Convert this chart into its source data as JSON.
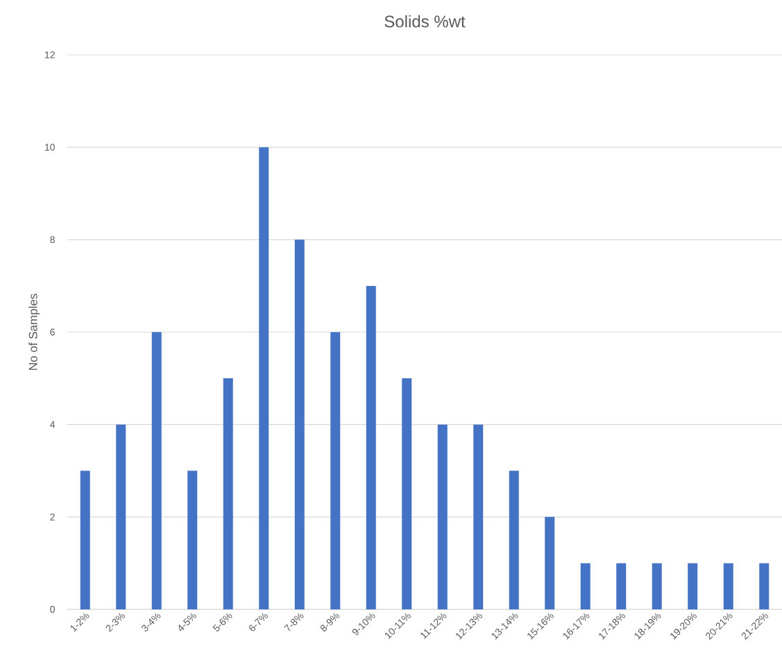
{
  "chart_data": {
    "type": "bar",
    "title": "Solids %wt",
    "ylabel": "No of Samples",
    "categories": [
      "1-2%",
      "2-3%",
      "3-4%",
      "4-5%",
      "5-6%",
      "6-7%",
      "7-8%",
      "8-9%",
      "9-10%",
      "10-11%",
      "11-12%",
      "12-13%",
      "13-14%",
      "15-16%",
      "16-17%",
      "17-18%",
      "18-19%",
      "19-20%",
      "20-21%",
      "21-22%"
    ],
    "values": [
      3,
      4,
      6,
      3,
      5,
      10,
      8,
      6,
      7,
      5,
      4,
      4,
      3,
      2,
      1,
      1,
      1,
      1,
      1,
      1
    ],
    "color": "#4472c4",
    "ylim": [
      0,
      12
    ],
    "yticks": [
      0,
      2,
      4,
      6,
      8,
      10,
      12
    ],
    "grid": "y"
  }
}
